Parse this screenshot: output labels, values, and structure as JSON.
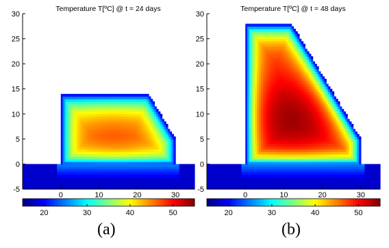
{
  "chart_data": [
    {
      "type": "heatmap",
      "title": "Temperature T[ºC] @ t = 24 days",
      "panel_label": "(a)",
      "x_ticks": [
        0,
        10,
        20,
        30
      ],
      "y_ticks": [
        -5,
        0,
        5,
        10,
        15,
        20,
        25,
        30
      ],
      "xlim": [
        -10,
        35
      ],
      "ylim": [
        -5,
        30
      ],
      "colorbar": {
        "range": [
          15,
          55
        ],
        "ticks": [
          20,
          30,
          40,
          50
        ],
        "colormap": "jet"
      },
      "structure": {
        "outline": [
          [
            0,
            0
          ],
          [
            0,
            14
          ],
          [
            23,
            14
          ],
          [
            30,
            5
          ],
          [
            30,
            0
          ]
        ],
        "foundation": {
          "x": [
            -10,
            35
          ],
          "y": [
            -5,
            0
          ]
        }
      },
      "field": {
        "ambient_temperature": 18,
        "core_temperature": 47,
        "hot_core_center": [
          14,
          5
        ],
        "foundation_temperature": 18,
        "foundation_warm_zone_temperature": 26
      }
    },
    {
      "type": "heatmap",
      "title": "Temperature T[ºC] @ t = 48 days",
      "panel_label": "(b)",
      "x_ticks": [
        0,
        10,
        20,
        30
      ],
      "y_ticks": [
        -5,
        0,
        5,
        10,
        15,
        20,
        25,
        30
      ],
      "xlim": [
        -10,
        35
      ],
      "ylim": [
        -5,
        30
      ],
      "colorbar": {
        "range": [
          15,
          55
        ],
        "ticks": [
          20,
          30,
          40,
          50
        ],
        "colormap": "jet"
      },
      "structure": {
        "outline": [
          [
            0,
            0
          ],
          [
            0,
            28
          ],
          [
            12,
            28
          ],
          [
            30,
            5
          ],
          [
            30,
            0
          ]
        ],
        "foundation": {
          "x": [
            -10,
            35
          ],
          "y": [
            -5,
            0
          ]
        }
      },
      "field": {
        "ambient_temperature": 18,
        "core_temperature": 54,
        "hot_core_center": [
          12,
          9
        ],
        "foundation_temperature": 18,
        "foundation_warm_zone_temperature": 26
      }
    }
  ]
}
